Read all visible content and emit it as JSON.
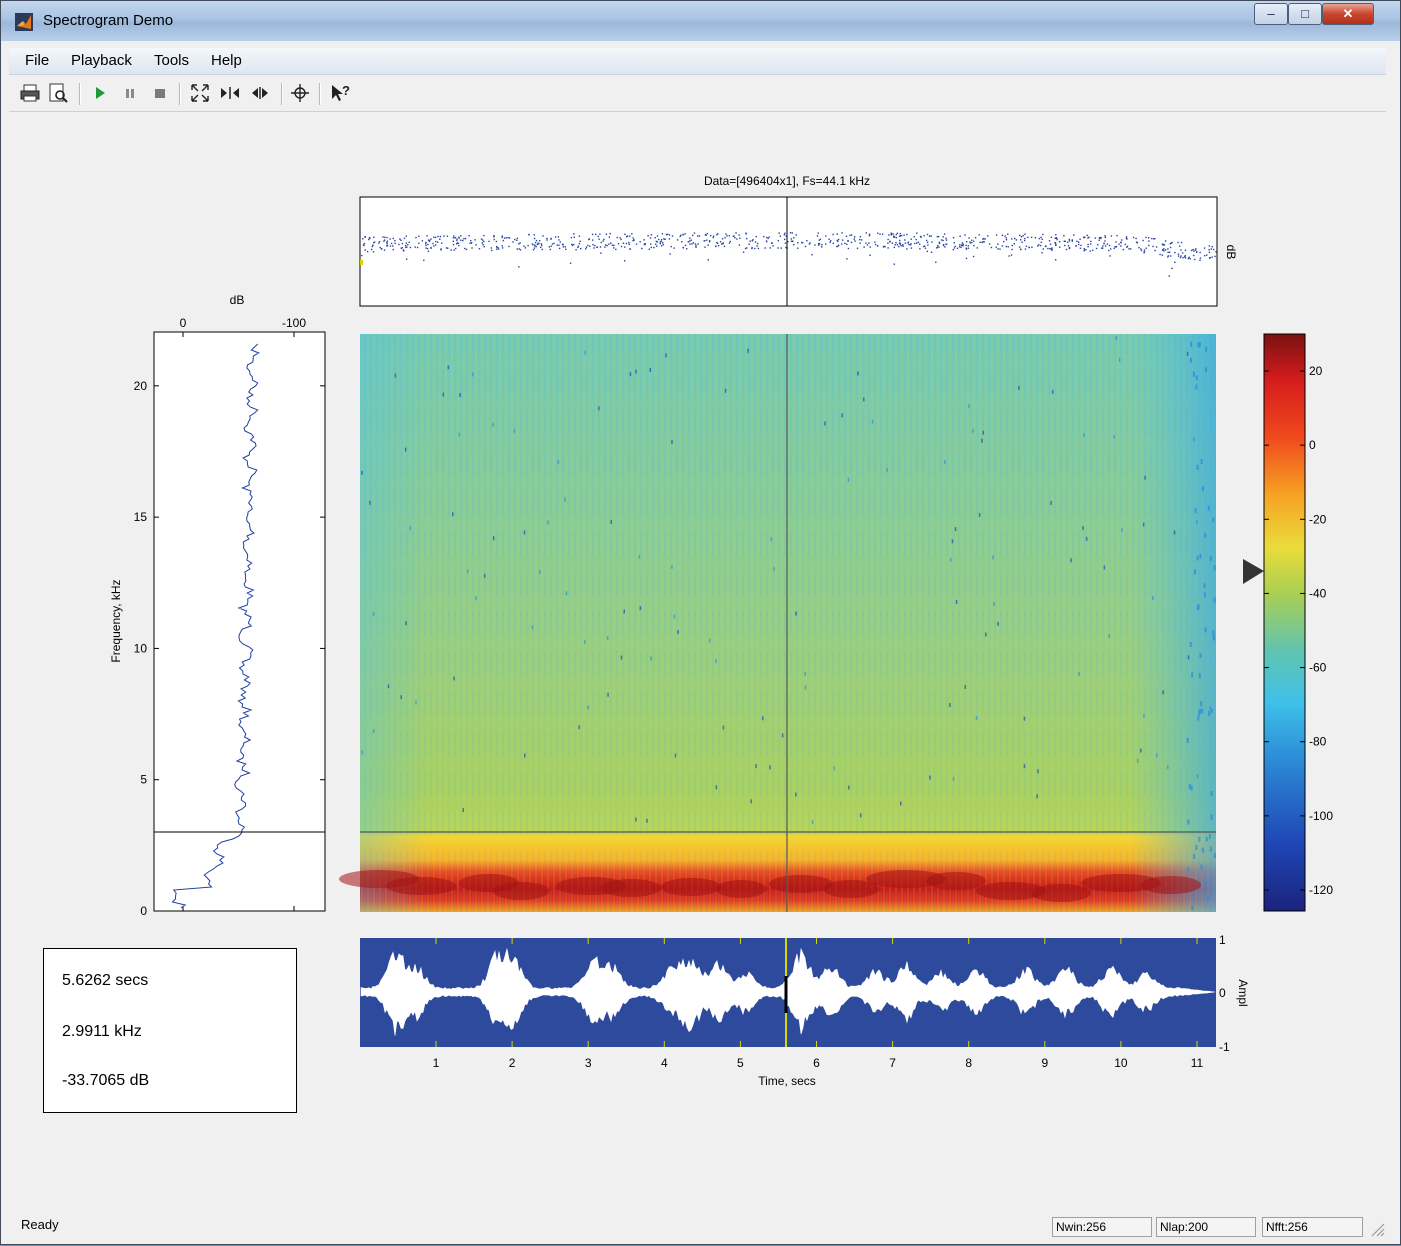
{
  "window": {
    "title": "Spectrogram Demo",
    "min_label": "‒",
    "max_label": "□",
    "close_label": "✕"
  },
  "menu": [
    "File",
    "Playback",
    "Tools",
    "Help"
  ],
  "toolbar": [
    "print-icon",
    "print-preview-icon",
    "play-icon",
    "pause-icon",
    "stop-icon",
    "zoom-fit-icon",
    "zoom-x-in-icon",
    "zoom-x-out-icon",
    "crosshair-icon",
    "help-pointer-icon"
  ],
  "plot": {
    "title": "Data=[496404x1], Fs=44.1 kHz",
    "overview_ylabel": "dB",
    "spectrum_top_label": "dB",
    "spectrum_x_ticks": [
      "0",
      "-100"
    ],
    "freq_ylabel": "Frequency, kHz",
    "freq_ticks": [
      "0",
      "5",
      "10",
      "15",
      "20"
    ],
    "time_xlabel": "Time, secs",
    "time_ticks": [
      "1",
      "2",
      "3",
      "4",
      "5",
      "6",
      "7",
      "8",
      "9",
      "10",
      "11"
    ],
    "ampl_label": "Ampl",
    "ampl_ticks": [
      "1",
      "0",
      "-1"
    ],
    "colorbar_ticks": [
      "20",
      "0",
      "-20",
      "-40",
      "-60",
      "-80",
      "-100",
      "-120"
    ],
    "cursor": {
      "time": 5.6262,
      "freq_khz": 2.9911,
      "level_db": -33.7065
    },
    "colors": {
      "waveform_bg": "#2e4a9c",
      "cursor_line": "#000000",
      "time_cursor": "#d8d800"
    }
  },
  "readout": {
    "time": "5.6262 secs",
    "freq": "2.9911 kHz",
    "level": "-33.7065 dB"
  },
  "status": {
    "text": "Ready",
    "nwin": "Nwin:256",
    "nlap": "Nlap:200",
    "nfft": "Nfft:256"
  }
}
